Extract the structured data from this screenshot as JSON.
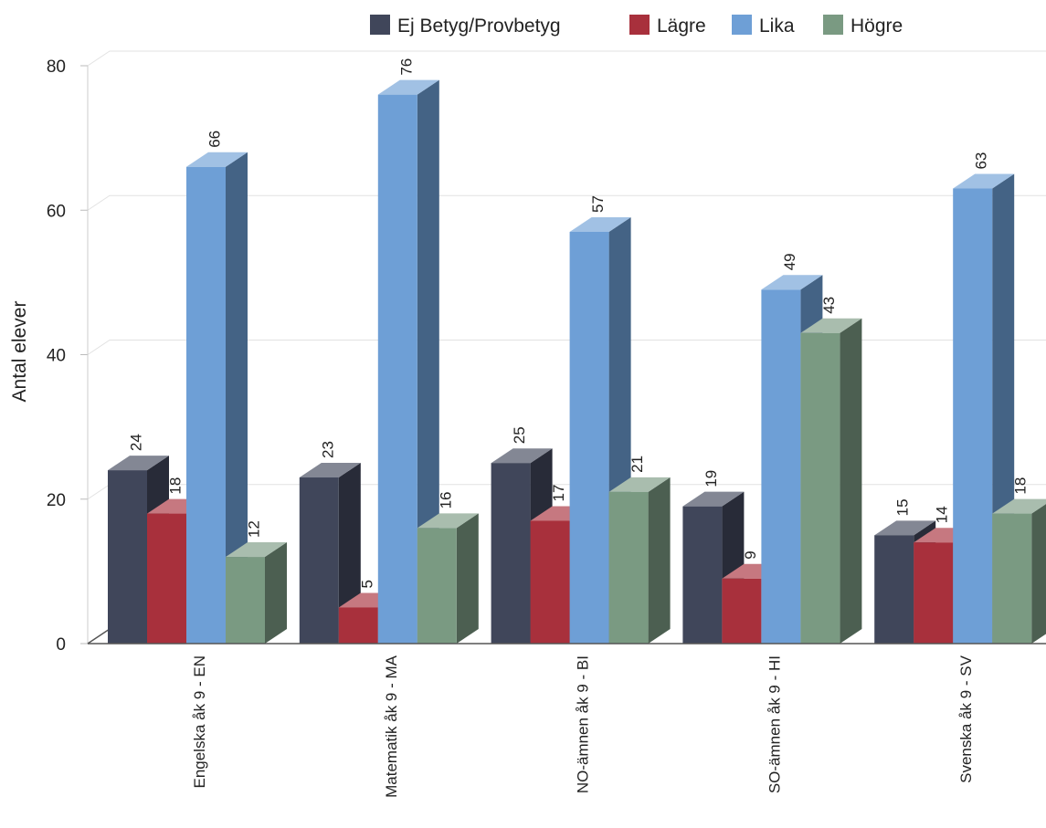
{
  "chart_data": {
    "type": "bar",
    "ylabel": "Antal elever",
    "xlabel": "",
    "ylim": [
      0,
      80
    ],
    "yticks": [
      0,
      20,
      40,
      60,
      80
    ],
    "grid": true,
    "legend_position": "top",
    "categories": [
      "Engelska åk 9 - EN",
      "Matematik åk 9 - MA",
      "NO-ämnen åk 9 - BI",
      "SO-ämnen åk 9 - HI",
      "Svenska åk 9 - SV"
    ],
    "series": [
      {
        "name": "Ej Betyg/Provbetyg",
        "color": "#40465a",
        "values": [
          24,
          23,
          25,
          19,
          15
        ]
      },
      {
        "name": "Lägre",
        "color": "#a8303c",
        "values": [
          18,
          5,
          17,
          9,
          14
        ]
      },
      {
        "name": "Lika",
        "color": "#6e9fd6",
        "values": [
          66,
          76,
          57,
          49,
          63
        ]
      },
      {
        "name": "Högre",
        "color": "#7a9a82",
        "values": [
          12,
          16,
          21,
          43,
          18
        ]
      }
    ]
  }
}
